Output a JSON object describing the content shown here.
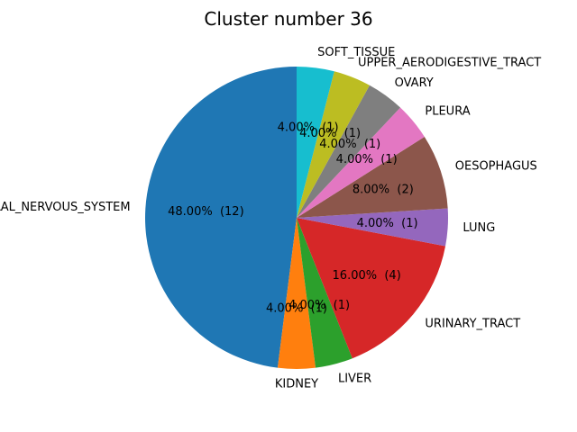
{
  "chart_data": {
    "type": "pie",
    "title": "Cluster number 36",
    "start_angle_deg": 90,
    "direction": "counterclockwise",
    "slices": [
      {
        "label": "CENTRAL_NERVOUS_SYSTEM",
        "value": 12,
        "pct_label": "48.00%  (12)",
        "color": "#1f77b4"
      },
      {
        "label": "KIDNEY",
        "value": 1,
        "pct_label": "4.00%  (1)",
        "color": "#ff7f0e"
      },
      {
        "label": "LIVER",
        "value": 1,
        "pct_label": "4.00%  (1)",
        "color": "#2ca02c"
      },
      {
        "label": "URINARY_TRACT",
        "value": 4,
        "pct_label": "16.00%  (4)",
        "color": "#d62728"
      },
      {
        "label": "LUNG",
        "value": 1,
        "pct_label": "4.00%  (1)",
        "color": "#9467bd"
      },
      {
        "label": "OESOPHAGUS",
        "value": 2,
        "pct_label": "8.00%  (2)",
        "color": "#8c564b"
      },
      {
        "label": "PLEURA",
        "value": 1,
        "pct_label": "4.00%  (1)",
        "color": "#e377c2"
      },
      {
        "label": "OVARY",
        "value": 1,
        "pct_label": "4.00%  (1)",
        "color": "#7f7f7f"
      },
      {
        "label": "UPPER_AERODIGESTIVE_TRACT",
        "value": 1,
        "pct_label": "4.00%  (1)",
        "color": "#bcbd22"
      },
      {
        "label": "SOFT_TISSUE",
        "value": 1,
        "pct_label": "4.00%  (1)",
        "color": "#17becf"
      }
    ]
  }
}
